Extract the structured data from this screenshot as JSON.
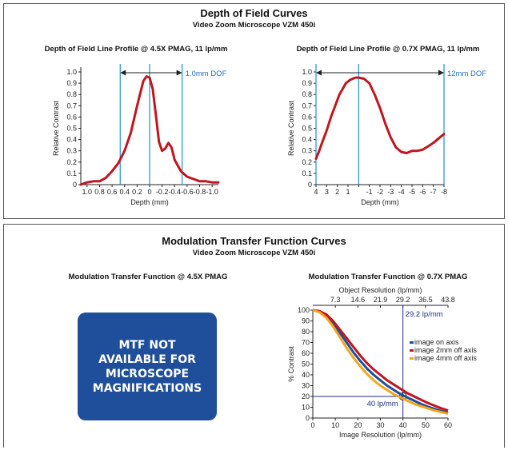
{
  "dof_section": {
    "title": "Depth of Field Curves",
    "subtitle": "Video Zoom Microscope VZM 450i"
  },
  "mtf_section": {
    "title": "Modulation Transfer Function Curves",
    "subtitle": "Video Zoom Microscope VZM 450i",
    "left_title": "Modulation Transfer Function @ 4.5X PMAG",
    "notice": "MTF NOT\nAVAILABLE FOR\nMICROSCOPE\nMAGNIFICATIONS"
  },
  "chart_data": [
    {
      "type": "line",
      "title": "Depth of Field Line Profile @ 4.5X PMAG, 11 lp/mm",
      "xlabel": "Depth (mm)",
      "ylabel": "Relative Contrast",
      "x_ticks": [
        "1.0",
        "0.8",
        "0.6",
        "0.4",
        "0.2",
        "0",
        "-0.2",
        "-0.4",
        "-0.6",
        "-0.8",
        "-1.0"
      ],
      "xlim": [
        1.1,
        -1.1
      ],
      "y_ticks": [
        "0",
        "0.1",
        "0.2",
        "0.3",
        "0.4",
        "0.5",
        "0.6",
        "0.7",
        "0.8",
        "0.9",
        "1.0"
      ],
      "ylim": [
        0,
        1.0
      ],
      "series": [
        {
          "color": "#c0161e",
          "x": [
            1.1,
            1.0,
            0.9,
            0.8,
            0.7,
            0.6,
            0.5,
            0.4,
            0.3,
            0.2,
            0.1,
            0.05,
            0,
            -0.05,
            -0.1,
            -0.15,
            -0.2,
            -0.25,
            -0.3,
            -0.35,
            -0.4,
            -0.5,
            -0.6,
            -0.7,
            -0.8,
            -0.9,
            -1.0,
            -1.1
          ],
          "y": [
            0.0,
            0.02,
            0.03,
            0.03,
            0.06,
            0.12,
            0.19,
            0.3,
            0.46,
            0.7,
            0.92,
            0.96,
            0.95,
            0.85,
            0.62,
            0.38,
            0.3,
            0.32,
            0.37,
            0.33,
            0.22,
            0.12,
            0.07,
            0.05,
            0.03,
            0.03,
            0.02,
            0.02
          ]
        }
      ],
      "vlines": [
        {
          "x": 0.47,
          "color": "#1e90d0"
        },
        {
          "x": 0.0,
          "color": "#1e90d0"
        },
        {
          "x": -0.52,
          "color": "#1e90d0"
        }
      ],
      "annotation": "1.0mm DOF",
      "dof_arrow": [
        0.47,
        -0.52
      ]
    },
    {
      "type": "line",
      "title": "Depth of Field Line Profile @ 0.7X PMAG, 11 lp/mm",
      "xlabel": "Depth (mm)",
      "ylabel": "Relative Contrast",
      "x_ticks": [
        "4",
        "3",
        "2",
        "1",
        "",
        "-1",
        "-2",
        "-3",
        "-4",
        "-5",
        "-6",
        "-7",
        "-8"
      ],
      "xlim": [
        4,
        -8
      ],
      "y_ticks": [
        "0",
        "0.1",
        "0.2",
        "0.3",
        "0.4",
        "0.5",
        "0.6",
        "0.7",
        "0.8",
        "0.9",
        "1.0"
      ],
      "ylim": [
        0,
        1.0
      ],
      "series": [
        {
          "color": "#c0161e",
          "x": [
            4,
            3.7,
            3.4,
            3,
            2.6,
            2.2,
            1.8,
            1.5,
            1.2,
            0.8,
            0.3,
            0,
            -0.5,
            -1,
            -1.5,
            -2,
            -2.5,
            -3,
            -3.5,
            -4,
            -4.5,
            -5,
            -5.5,
            -6,
            -6.5,
            -7,
            -7.5,
            -8
          ],
          "y": [
            0.23,
            0.3,
            0.38,
            0.48,
            0.6,
            0.7,
            0.8,
            0.85,
            0.9,
            0.93,
            0.95,
            0.95,
            0.94,
            0.9,
            0.8,
            0.68,
            0.54,
            0.42,
            0.33,
            0.29,
            0.28,
            0.3,
            0.3,
            0.31,
            0.34,
            0.37,
            0.41,
            0.45
          ]
        }
      ],
      "vlines": [
        {
          "x": 4,
          "color": "#1e90d0"
        },
        {
          "x": 0,
          "color": "#1e90d0"
        },
        {
          "x": -8,
          "color": "#1e90d0"
        }
      ],
      "annotation": "12mm DOF",
      "dof_arrow": [
        4,
        -8
      ]
    },
    {
      "type": "line",
      "title": "Modulation Transfer Function @ 0.7X PMAG",
      "xlabel": "Image Resolution (lp/mm)",
      "x2label": "Object Resolution (lp/mm)",
      "ylabel": "% Contrast",
      "x_ticks": [
        "0",
        "10",
        "20",
        "30",
        "40",
        "50",
        "60"
      ],
      "x2_ticks": [
        "7.3",
        "14.6",
        "21.9",
        "29.2",
        "36.5",
        "43.8"
      ],
      "xlim": [
        0,
        60
      ],
      "y_ticks": [
        "0",
        "10",
        "20",
        "30",
        "40",
        "50",
        "60",
        "70",
        "80",
        "90",
        "100"
      ],
      "ylim": [
        0,
        100
      ],
      "series": [
        {
          "name": "image on axis",
          "color": "#1a4f9c",
          "x": [
            0,
            3,
            6,
            9,
            12,
            15,
            18,
            21,
            24,
            27,
            30,
            33,
            36,
            39,
            42,
            45,
            48,
            51,
            54,
            57,
            60
          ],
          "y": [
            100,
            99,
            95,
            88,
            79,
            70,
            61,
            53,
            46,
            40,
            35,
            30,
            26,
            22,
            19,
            16,
            13,
            10.5,
            8.5,
            6.5,
            5
          ]
        },
        {
          "name": "image 2mm off axis",
          "color": "#c0161e",
          "x": [
            0,
            3,
            6,
            9,
            12,
            15,
            18,
            21,
            24,
            27,
            30,
            33,
            36,
            39,
            42,
            45,
            48,
            51,
            54,
            57,
            60
          ],
          "y": [
            100,
            99,
            96,
            90,
            82,
            74,
            66,
            58,
            51,
            45,
            40,
            35,
            31,
            27,
            23,
            20,
            17,
            14,
            11.5,
            9,
            7
          ]
        },
        {
          "name": "image 4mm off axis",
          "color": "#f2a51c",
          "x": [
            0,
            3,
            6,
            9,
            12,
            15,
            18,
            21,
            24,
            27,
            30,
            33,
            36,
            39,
            42,
            45,
            48,
            51,
            54,
            57,
            60
          ],
          "y": [
            100,
            98,
            93,
            85,
            75,
            65,
            56,
            48,
            41,
            35,
            30,
            26,
            22,
            19,
            16,
            13,
            11,
            9,
            7,
            5.5,
            4
          ]
        }
      ],
      "marker_lines": {
        "x": 40,
        "y": 20
      },
      "annotations": [
        "29.2 lp/mm",
        "40 lp/mm"
      ],
      "legend_position": "right"
    }
  ]
}
